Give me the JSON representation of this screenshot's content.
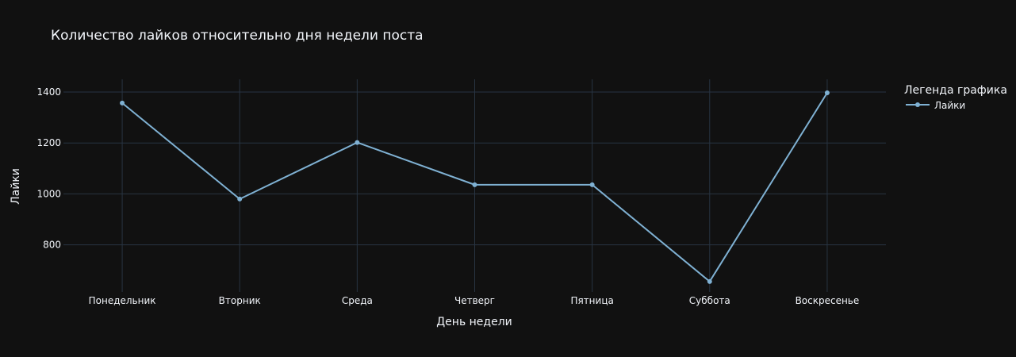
{
  "chart_data": {
    "type": "line",
    "title": "Количество лайков относительно дня недели поста",
    "xlabel": "День недели",
    "ylabel": "Лайки",
    "categories": [
      "Понедельник",
      "Вторник",
      "Среда",
      "Четверг",
      "Пятница",
      "Суббота",
      "Воскресенье"
    ],
    "series": [
      {
        "name": "Лайки",
        "values": [
          1357,
          980,
          1202,
          1036,
          1036,
          656,
          1397
        ]
      }
    ],
    "yticks": [
      800,
      1000,
      1200,
      1400
    ],
    "ylim": [
      615,
      1450
    ],
    "grid": true,
    "legend": {
      "title": "Легенда графика",
      "placement": "top-right"
    },
    "colors": {
      "background": "#111111",
      "line": "#7fb1d3",
      "grid": "#283442",
      "text": "#f2f5fa"
    }
  }
}
